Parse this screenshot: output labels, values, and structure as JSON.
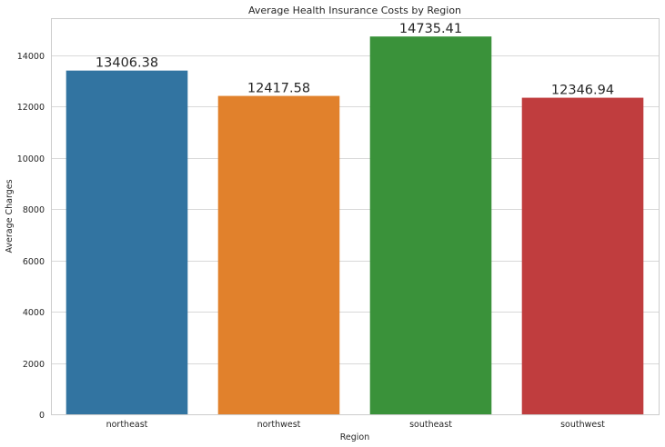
{
  "chart_data": {
    "type": "bar",
    "title": "Average Health Insurance Costs by Region",
    "xlabel": "Region",
    "ylabel": "Average Charges",
    "categories": [
      "northeast",
      "northwest",
      "southeast",
      "southwest"
    ],
    "values": [
      13406.38,
      12417.58,
      14735.41,
      12346.94
    ],
    "data_labels": [
      "13406.38",
      "12417.58",
      "14735.41",
      "12346.94"
    ],
    "colors": [
      "#3274a1",
      "#e1812c",
      "#3a923a",
      "#c03d3e"
    ],
    "ylim": [
      0,
      15450
    ],
    "yticks": [
      0,
      2000,
      4000,
      6000,
      8000,
      10000,
      12000,
      14000
    ],
    "grid": true,
    "grid_axis": "y",
    "legend": "none",
    "style": "seaborn-whitegrid"
  }
}
